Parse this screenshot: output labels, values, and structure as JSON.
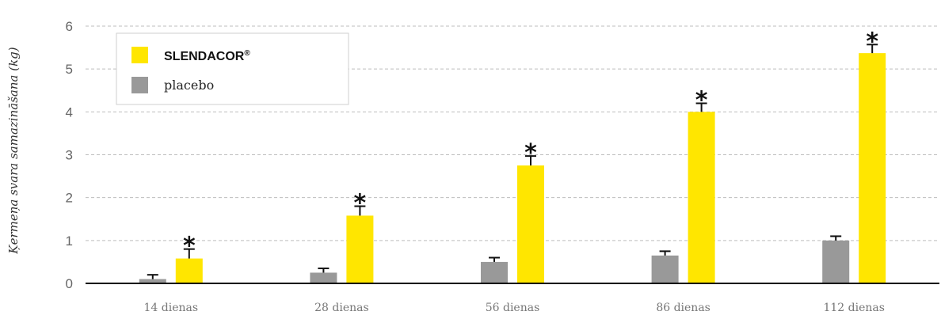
{
  "chart_data": {
    "type": "bar",
    "ylabel": "Ķermeņa svara samazināšana (kg)",
    "xlabel": "",
    "ylim": [
      0,
      6
    ],
    "yticks": [
      0,
      1,
      2,
      3,
      4,
      5,
      6
    ],
    "grid": true,
    "legend_position": "top-left",
    "categories": [
      "14 dienas",
      "28 dienas",
      "56 dienas",
      "86 dienas",
      "112 dienas"
    ],
    "series": [
      {
        "name": "placebo",
        "color": "#999999",
        "values": [
          0.1,
          0.25,
          0.5,
          0.65,
          1.0
        ],
        "errors": [
          0.1,
          0.1,
          0.1,
          0.1,
          0.1
        ]
      },
      {
        "name": "SLENDACOR",
        "name_mark": "®",
        "color": "#FFE600",
        "values": [
          0.58,
          1.58,
          2.75,
          4.0,
          5.37
        ],
        "errors": [
          0.22,
          0.22,
          0.22,
          0.2,
          0.2
        ],
        "significance": [
          "*",
          "*",
          "*",
          "*",
          "*"
        ]
      }
    ]
  }
}
